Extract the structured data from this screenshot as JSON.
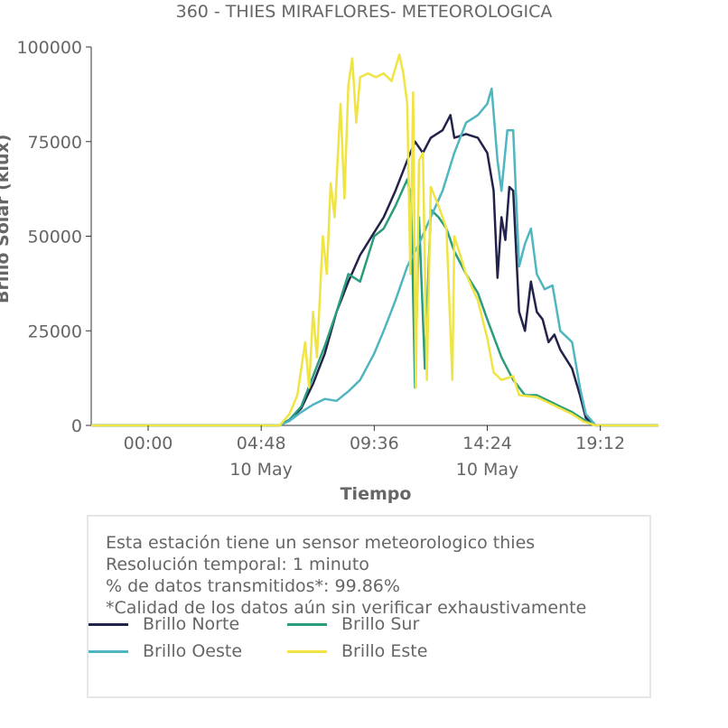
{
  "chart_data": {
    "type": "line",
    "title": "360 - THIES MIRAFLORES- METEOROLOGICA",
    "xlabel": "Tiempo",
    "ylabel": "Brillo Solar (klux)",
    "ylim": [
      0,
      100000
    ],
    "xlim": [
      "2024-05-09 21:35",
      "2024-05-10 21:40"
    ],
    "yticks": [
      "0",
      "25000",
      "50000",
      "75000",
      "100000"
    ],
    "xticks": [
      {
        "time": "2024-05-10 00:00",
        "label": "00:00",
        "sublabel": ""
      },
      {
        "time": "2024-05-10 04:48",
        "label": "04:48",
        "sublabel": "10 May"
      },
      {
        "time": "2024-05-10 09:36",
        "label": "09:36",
        "sublabel": ""
      },
      {
        "time": "2024-05-10 14:24",
        "label": "14:24",
        "sublabel": "10 May"
      },
      {
        "time": "2024-05-10 19:12",
        "label": "19:12",
        "sublabel": ""
      }
    ],
    "series": [
      {
        "name": "Brillo Norte",
        "color": "#22224a",
        "points": [
          [
            "2024-05-09 21:35",
            0
          ],
          [
            "2024-05-10 05:35",
            0
          ],
          [
            "2024-05-10 06:00",
            1500
          ],
          [
            "2024-05-10 06:30",
            4500
          ],
          [
            "2024-05-10 07:00",
            11000
          ],
          [
            "2024-05-10 07:30",
            19000
          ],
          [
            "2024-05-10 08:00",
            30000
          ],
          [
            "2024-05-10 08:30",
            38000
          ],
          [
            "2024-05-10 09:00",
            45000
          ],
          [
            "2024-05-10 09:36",
            51000
          ],
          [
            "2024-05-10 10:00",
            55000
          ],
          [
            "2024-05-10 10:30",
            62000
          ],
          [
            "2024-05-10 11:00",
            70000
          ],
          [
            "2024-05-10 11:20",
            75000
          ],
          [
            "2024-05-10 11:40",
            72000
          ],
          [
            "2024-05-10 12:00",
            76000
          ],
          [
            "2024-05-10 12:30",
            78000
          ],
          [
            "2024-05-10 12:50",
            82000
          ],
          [
            "2024-05-10 13:00",
            76000
          ],
          [
            "2024-05-10 13:30",
            77000
          ],
          [
            "2024-05-10 14:00",
            76000
          ],
          [
            "2024-05-10 14:24",
            72000
          ],
          [
            "2024-05-10 14:40",
            62000
          ],
          [
            "2024-05-10 14:50",
            39000
          ],
          [
            "2024-05-10 15:00",
            55000
          ],
          [
            "2024-05-10 15:10",
            49000
          ],
          [
            "2024-05-10 15:20",
            63000
          ],
          [
            "2024-05-10 15:30",
            62000
          ],
          [
            "2024-05-10 15:45",
            30000
          ],
          [
            "2024-05-10 16:00",
            25000
          ],
          [
            "2024-05-10 16:15",
            38000
          ],
          [
            "2024-05-10 16:30",
            30000
          ],
          [
            "2024-05-10 16:45",
            28000
          ],
          [
            "2024-05-10 17:00",
            22000
          ],
          [
            "2024-05-10 17:15",
            24000
          ],
          [
            "2024-05-10 17:30",
            20000
          ],
          [
            "2024-05-10 18:00",
            15000
          ],
          [
            "2024-05-10 18:20",
            8000
          ],
          [
            "2024-05-10 18:35",
            2000
          ],
          [
            "2024-05-10 19:00",
            0
          ],
          [
            "2024-05-10 21:40",
            0
          ]
        ]
      },
      {
        "name": "Brillo Sur",
        "color": "#2a9d7c",
        "points": [
          [
            "2024-05-09 21:35",
            0
          ],
          [
            "2024-05-10 05:35",
            0
          ],
          [
            "2024-05-10 06:00",
            1500
          ],
          [
            "2024-05-10 06:30",
            5000
          ],
          [
            "2024-05-10 07:00",
            13000
          ],
          [
            "2024-05-10 07:30",
            21000
          ],
          [
            "2024-05-10 08:00",
            30000
          ],
          [
            "2024-05-10 08:30",
            40000
          ],
          [
            "2024-05-10 09:00",
            38000
          ],
          [
            "2024-05-10 09:36",
            50000
          ],
          [
            "2024-05-10 10:00",
            52000
          ],
          [
            "2024-05-10 10:30",
            58000
          ],
          [
            "2024-05-10 11:00",
            65000
          ],
          [
            "2024-05-10 11:10",
            60000
          ],
          [
            "2024-05-10 11:20",
            10000
          ],
          [
            "2024-05-10 11:30",
            55000
          ],
          [
            "2024-05-10 11:45",
            15000
          ],
          [
            "2024-05-10 12:00",
            57000
          ],
          [
            "2024-05-10 12:20",
            55000
          ],
          [
            "2024-05-10 12:40",
            52000
          ],
          [
            "2024-05-10 13:00",
            46000
          ],
          [
            "2024-05-10 13:30",
            40000
          ],
          [
            "2024-05-10 14:00",
            35000
          ],
          [
            "2024-05-10 14:24",
            28000
          ],
          [
            "2024-05-10 15:00",
            18000
          ],
          [
            "2024-05-10 15:30",
            12000
          ],
          [
            "2024-05-10 16:00",
            8000
          ],
          [
            "2024-05-10 16:30",
            8000
          ],
          [
            "2024-05-10 17:00",
            6500
          ],
          [
            "2024-05-10 17:30",
            5000
          ],
          [
            "2024-05-10 18:00",
            3500
          ],
          [
            "2024-05-10 18:30",
            1500
          ],
          [
            "2024-05-10 19:00",
            0
          ],
          [
            "2024-05-10 21:40",
            0
          ]
        ]
      },
      {
        "name": "Brillo Oeste",
        "color": "#4fb6c0",
        "points": [
          [
            "2024-05-09 21:35",
            0
          ],
          [
            "2024-05-10 05:35",
            0
          ],
          [
            "2024-05-10 06:00",
            1200
          ],
          [
            "2024-05-10 06:30",
            3500
          ],
          [
            "2024-05-10 07:00",
            5500
          ],
          [
            "2024-05-10 07:30",
            7000
          ],
          [
            "2024-05-10 08:00",
            6500
          ],
          [
            "2024-05-10 08:30",
            9000
          ],
          [
            "2024-05-10 09:00",
            12000
          ],
          [
            "2024-05-10 09:36",
            19000
          ],
          [
            "2024-05-10 10:00",
            25000
          ],
          [
            "2024-05-10 10:30",
            33000
          ],
          [
            "2024-05-10 11:00",
            42000
          ],
          [
            "2024-05-10 11:15",
            45000
          ],
          [
            "2024-05-10 11:30",
            48000
          ],
          [
            "2024-05-10 12:00",
            55000
          ],
          [
            "2024-05-10 12:30",
            62000
          ],
          [
            "2024-05-10 13:00",
            72000
          ],
          [
            "2024-05-10 13:30",
            80000
          ],
          [
            "2024-05-10 14:00",
            82000
          ],
          [
            "2024-05-10 14:24",
            85000
          ],
          [
            "2024-05-10 14:35",
            89000
          ],
          [
            "2024-05-10 14:50",
            70000
          ],
          [
            "2024-05-10 15:00",
            62000
          ],
          [
            "2024-05-10 15:15",
            78000
          ],
          [
            "2024-05-10 15:30",
            78000
          ],
          [
            "2024-05-10 15:45",
            42000
          ],
          [
            "2024-05-10 16:00",
            48000
          ],
          [
            "2024-05-10 16:15",
            52000
          ],
          [
            "2024-05-10 16:30",
            40000
          ],
          [
            "2024-05-10 16:50",
            36000
          ],
          [
            "2024-05-10 17:10",
            37000
          ],
          [
            "2024-05-10 17:30",
            25000
          ],
          [
            "2024-05-10 18:00",
            22000
          ],
          [
            "2024-05-10 18:20",
            10000
          ],
          [
            "2024-05-10 18:35",
            3000
          ],
          [
            "2024-05-10 19:00",
            0
          ],
          [
            "2024-05-10 21:40",
            0
          ]
        ]
      },
      {
        "name": "Brillo Este",
        "color": "#f0e442",
        "points": [
          [
            "2024-05-09 21:35",
            0
          ],
          [
            "2024-05-10 05:35",
            0
          ],
          [
            "2024-05-10 06:00",
            3000
          ],
          [
            "2024-05-10 06:20",
            8000
          ],
          [
            "2024-05-10 06:40",
            22000
          ],
          [
            "2024-05-10 06:50",
            10000
          ],
          [
            "2024-05-10 07:00",
            30000
          ],
          [
            "2024-05-10 07:10",
            18000
          ],
          [
            "2024-05-10 07:25",
            50000
          ],
          [
            "2024-05-10 07:35",
            40000
          ],
          [
            "2024-05-10 07:45",
            64000
          ],
          [
            "2024-05-10 07:55",
            55000
          ],
          [
            "2024-05-10 08:10",
            85000
          ],
          [
            "2024-05-10 08:20",
            60000
          ],
          [
            "2024-05-10 08:30",
            90000
          ],
          [
            "2024-05-10 08:40",
            97000
          ],
          [
            "2024-05-10 08:50",
            80000
          ],
          [
            "2024-05-10 09:00",
            92000
          ],
          [
            "2024-05-10 09:20",
            93000
          ],
          [
            "2024-05-10 09:40",
            92000
          ],
          [
            "2024-05-10 10:00",
            93000
          ],
          [
            "2024-05-10 10:20",
            91000
          ],
          [
            "2024-05-10 10:40",
            98000
          ],
          [
            "2024-05-10 10:50",
            93000
          ],
          [
            "2024-05-10 11:00",
            85000
          ],
          [
            "2024-05-10 11:08",
            40000
          ],
          [
            "2024-05-10 11:15",
            88000
          ],
          [
            "2024-05-10 11:22",
            10000
          ],
          [
            "2024-05-10 11:30",
            70000
          ],
          [
            "2024-05-10 11:40",
            72000
          ],
          [
            "2024-05-10 11:50",
            12000
          ],
          [
            "2024-05-10 12:00",
            63000
          ],
          [
            "2024-05-10 12:20",
            58000
          ],
          [
            "2024-05-10 12:40",
            52000
          ],
          [
            "2024-05-10 12:55",
            12000
          ],
          [
            "2024-05-10 13:00",
            50000
          ],
          [
            "2024-05-10 13:30",
            40000
          ],
          [
            "2024-05-10 14:00",
            33000
          ],
          [
            "2024-05-10 14:24",
            23000
          ],
          [
            "2024-05-10 14:40",
            14000
          ],
          [
            "2024-05-10 15:00",
            12000
          ],
          [
            "2024-05-10 15:30",
            13000
          ],
          [
            "2024-05-10 15:45",
            8000
          ],
          [
            "2024-05-10 16:30",
            7500
          ],
          [
            "2024-05-10 17:00",
            6000
          ],
          [
            "2024-05-10 17:30",
            4500
          ],
          [
            "2024-05-10 18:00",
            3000
          ],
          [
            "2024-05-10 18:30",
            1000
          ],
          [
            "2024-05-10 19:00",
            0
          ],
          [
            "2024-05-10 21:40",
            0
          ]
        ]
      }
    ],
    "legend_placement": "below",
    "grid": false
  },
  "info": {
    "line1": "Esta estación tiene un sensor meteorologico thies",
    "line2": "Resolución temporal: 1 minuto",
    "line3": "% de datos transmitidos*: 99.86%",
    "line4": "*Calidad de los datos aún sin verificar exhaustivamente"
  },
  "legend": [
    {
      "label": "Brillo Norte",
      "color": "#22224a"
    },
    {
      "label": "Brillo Sur",
      "color": "#2a9d7c"
    },
    {
      "label": "Brillo Oeste",
      "color": "#4fb6c0"
    },
    {
      "label": "Brillo Este",
      "color": "#f0e442"
    }
  ]
}
